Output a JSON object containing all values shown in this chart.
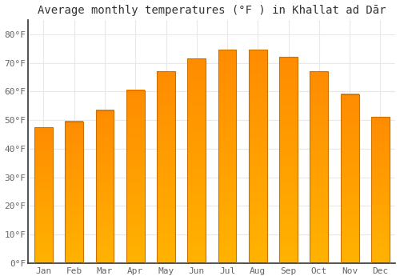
{
  "months": [
    "Jan",
    "Feb",
    "Mar",
    "Apr",
    "May",
    "Jun",
    "Jul",
    "Aug",
    "Sep",
    "Oct",
    "Nov",
    "Dec"
  ],
  "values": [
    47.5,
    49.5,
    53.5,
    60.5,
    67,
    71.5,
    74.5,
    74.5,
    72,
    67,
    59,
    51
  ],
  "bar_color_top": "#FFB300",
  "bar_color_bottom": "#FF8C00",
  "bar_edge_color": "#CC7000",
  "background_color": "#FFFFFF",
  "grid_color": "#E8E8E8",
  "title": "Average monthly temperatures (°F ) in Khallat ad Dār",
  "ylabel_ticks": [
    "0°F",
    "10°F",
    "20°F",
    "30°F",
    "40°F",
    "50°F",
    "60°F",
    "70°F",
    "80°F"
  ],
  "ytick_values": [
    0,
    10,
    20,
    30,
    40,
    50,
    60,
    70,
    80
  ],
  "ylim": [
    0,
    85
  ],
  "title_fontsize": 10,
  "tick_fontsize": 8,
  "font_family": "monospace",
  "bar_width": 0.6
}
